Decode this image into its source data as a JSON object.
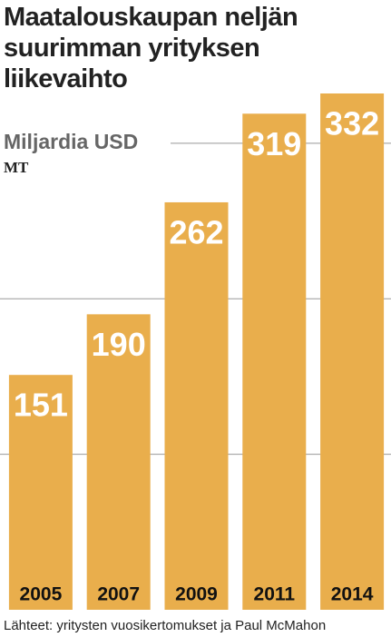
{
  "chart_data": {
    "type": "bar",
    "title": "Maatalouskaupan neljän suurimman yrityksen liikevaihto",
    "subtitle": "Miljardia USD",
    "logo": "MT",
    "source": "Lähteet: yritysten vuosikertomukset ja Paul McMahon",
    "categories": [
      "2005",
      "2007",
      "2009",
      "2011",
      "2014"
    ],
    "values": [
      151,
      190,
      262,
      319,
      332
    ],
    "color": "#e9ae4c",
    "ylim": [
      0,
      332
    ],
    "yticks": [
      100,
      200,
      300
    ],
    "grid": true
  }
}
